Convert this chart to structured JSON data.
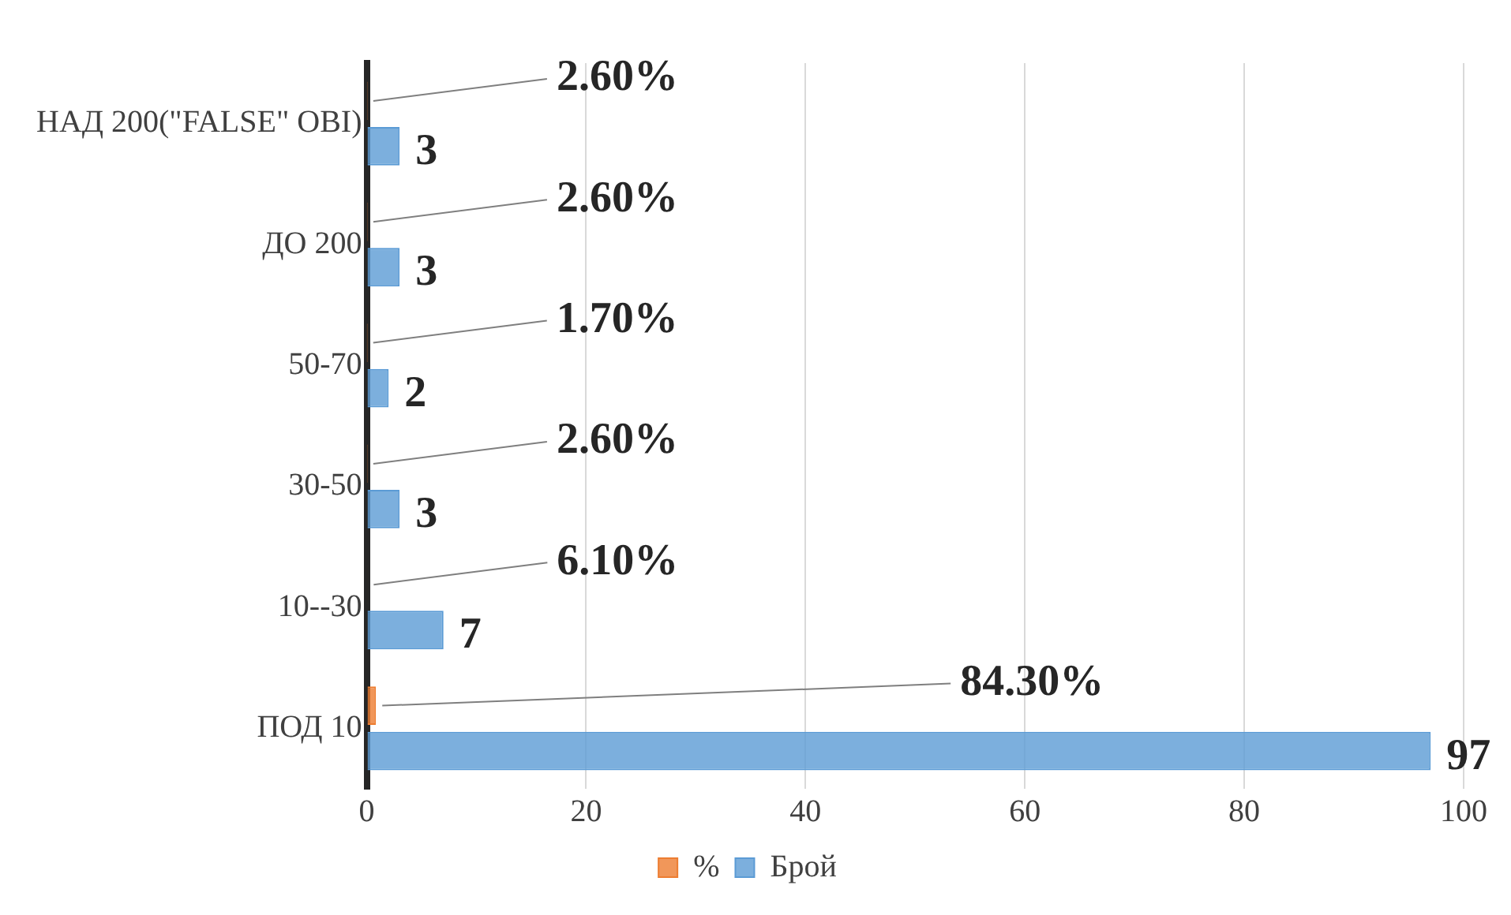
{
  "chart_data": {
    "type": "bar",
    "orientation": "horizontal",
    "categories": [
      "НАД 200(\"FALSE\" OBI)",
      "ДО 200",
      "50-70",
      "30-50",
      "10--30",
      "ПОД 10"
    ],
    "series": [
      {
        "name": "%",
        "color": "#ed7d31",
        "values": [
          0.026,
          0.026,
          0.017,
          0.026,
          0.061,
          0.843
        ],
        "value_labels": [
          "2.60%",
          "2.60%",
          "1.70%",
          "2.60%",
          "6.10%",
          "84.30%"
        ]
      },
      {
        "name": "Брой",
        "color": "#5b9bd5",
        "values": [
          3,
          3,
          2,
          3,
          7,
          97
        ],
        "value_labels": [
          "3",
          "3",
          "2",
          "3",
          "7",
          "97"
        ]
      }
    ],
    "xlim": [
      0,
      100
    ],
    "xticks": [
      0,
      20,
      40,
      60,
      80,
      100
    ],
    "grid": "x",
    "legend": "bottom"
  }
}
